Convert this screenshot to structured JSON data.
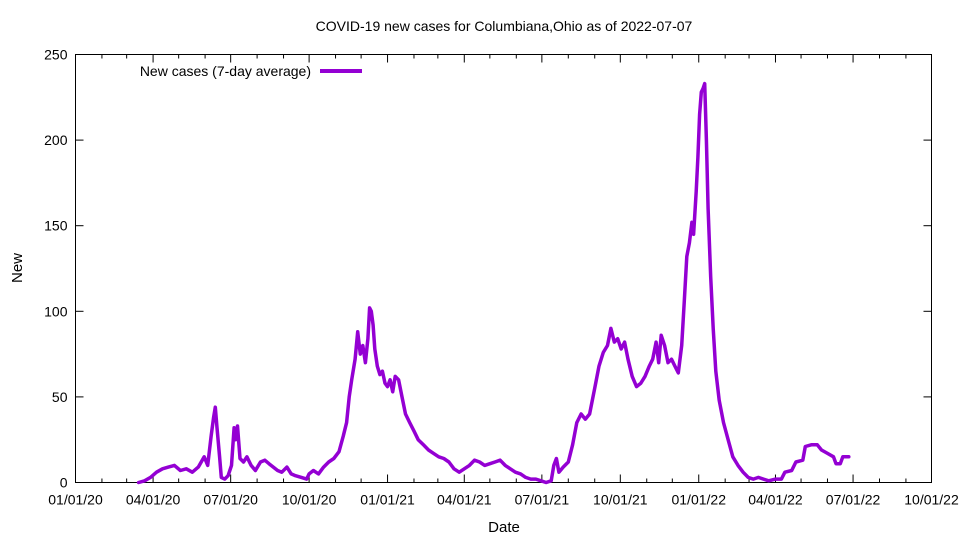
{
  "chart_data": {
    "type": "line",
    "title": "COVID-19 new cases for Columbiana,Ohio as of 2022-07-07",
    "xlabel": "Date",
    "ylabel": "New",
    "xlim": [
      "2020-01-01",
      "2022-10-01"
    ],
    "ylim": [
      0,
      250
    ],
    "xticks": [
      {
        "date": "2020-01-01",
        "label": "01/01/20"
      },
      {
        "date": "2020-04-01",
        "label": "04/01/20"
      },
      {
        "date": "2020-07-01",
        "label": "07/01/20"
      },
      {
        "date": "2020-10-01",
        "label": "10/01/20"
      },
      {
        "date": "2021-01-01",
        "label": "01/01/21"
      },
      {
        "date": "2021-04-01",
        "label": "04/01/21"
      },
      {
        "date": "2021-07-01",
        "label": "07/01/21"
      },
      {
        "date": "2021-10-01",
        "label": "10/01/21"
      },
      {
        "date": "2022-01-01",
        "label": "01/01/22"
      },
      {
        "date": "2022-04-01",
        "label": "04/01/22"
      },
      {
        "date": "2022-07-01",
        "label": "07/01/22"
      },
      {
        "date": "2022-10-01",
        "label": "10/01/22"
      }
    ],
    "yticks": [
      0,
      50,
      100,
      150,
      200,
      250
    ],
    "grid": false,
    "legend_position": "top-left",
    "series": [
      {
        "name": "New cases (7-day average)",
        "color": "#9400d3",
        "points": [
          [
            "2020-03-15",
            0
          ],
          [
            "2020-03-22",
            1
          ],
          [
            "2020-03-29",
            3
          ],
          [
            "2020-04-05",
            6
          ],
          [
            "2020-04-12",
            8
          ],
          [
            "2020-04-19",
            9
          ],
          [
            "2020-04-26",
            10
          ],
          [
            "2020-05-03",
            7
          ],
          [
            "2020-05-10",
            8
          ],
          [
            "2020-05-17",
            6
          ],
          [
            "2020-05-24",
            9
          ],
          [
            "2020-05-31",
            15
          ],
          [
            "2020-06-04",
            10
          ],
          [
            "2020-06-08",
            27
          ],
          [
            "2020-06-11",
            38
          ],
          [
            "2020-06-13",
            44
          ],
          [
            "2020-06-15",
            32
          ],
          [
            "2020-06-18",
            15
          ],
          [
            "2020-06-20",
            3
          ],
          [
            "2020-06-24",
            2
          ],
          [
            "2020-06-28",
            4
          ],
          [
            "2020-07-02",
            10
          ],
          [
            "2020-07-05",
            32
          ],
          [
            "2020-07-07",
            25
          ],
          [
            "2020-07-09",
            33
          ],
          [
            "2020-07-12",
            14
          ],
          [
            "2020-07-16",
            12
          ],
          [
            "2020-07-20",
            15
          ],
          [
            "2020-07-25",
            10
          ],
          [
            "2020-07-30",
            7
          ],
          [
            "2020-08-05",
            12
          ],
          [
            "2020-08-10",
            13
          ],
          [
            "2020-08-15",
            11
          ],
          [
            "2020-08-20",
            9
          ],
          [
            "2020-08-25",
            7
          ],
          [
            "2020-08-30",
            6
          ],
          [
            "2020-09-05",
            9
          ],
          [
            "2020-09-10",
            5
          ],
          [
            "2020-09-15",
            4
          ],
          [
            "2020-09-22",
            3
          ],
          [
            "2020-09-28",
            2
          ],
          [
            "2020-10-01",
            5
          ],
          [
            "2020-10-06",
            7
          ],
          [
            "2020-10-12",
            5
          ],
          [
            "2020-10-18",
            9
          ],
          [
            "2020-10-24",
            12
          ],
          [
            "2020-10-30",
            14
          ],
          [
            "2020-11-05",
            18
          ],
          [
            "2020-11-10",
            27
          ],
          [
            "2020-11-14",
            35
          ],
          [
            "2020-11-17",
            50
          ],
          [
            "2020-11-20",
            60
          ],
          [
            "2020-11-24",
            72
          ],
          [
            "2020-11-27",
            88
          ],
          [
            "2020-11-30",
            75
          ],
          [
            "2020-12-03",
            80
          ],
          [
            "2020-12-06",
            70
          ],
          [
            "2020-12-09",
            84
          ],
          [
            "2020-12-11",
            102
          ],
          [
            "2020-12-13",
            100
          ],
          [
            "2020-12-15",
            92
          ],
          [
            "2020-12-17",
            78
          ],
          [
            "2020-12-20",
            68
          ],
          [
            "2020-12-23",
            63
          ],
          [
            "2020-12-26",
            65
          ],
          [
            "2020-12-29",
            58
          ],
          [
            "2021-01-01",
            56
          ],
          [
            "2021-01-04",
            60
          ],
          [
            "2021-01-07",
            53
          ],
          [
            "2021-01-10",
            62
          ],
          [
            "2021-01-14",
            60
          ],
          [
            "2021-01-18",
            50
          ],
          [
            "2021-01-22",
            40
          ],
          [
            "2021-01-27",
            35
          ],
          [
            "2021-02-01",
            30
          ],
          [
            "2021-02-06",
            25
          ],
          [
            "2021-02-12",
            22
          ],
          [
            "2021-02-18",
            19
          ],
          [
            "2021-02-24",
            17
          ],
          [
            "2021-03-02",
            15
          ],
          [
            "2021-03-08",
            14
          ],
          [
            "2021-03-14",
            12
          ],
          [
            "2021-03-20",
            8
          ],
          [
            "2021-03-26",
            6
          ],
          [
            "2021-04-01",
            8
          ],
          [
            "2021-04-07",
            10
          ],
          [
            "2021-04-13",
            13
          ],
          [
            "2021-04-19",
            12
          ],
          [
            "2021-04-25",
            10
          ],
          [
            "2021-05-01",
            11
          ],
          [
            "2021-05-07",
            12
          ],
          [
            "2021-05-13",
            13
          ],
          [
            "2021-05-19",
            10
          ],
          [
            "2021-05-25",
            8
          ],
          [
            "2021-05-31",
            6
          ],
          [
            "2021-06-06",
            5
          ],
          [
            "2021-06-12",
            3
          ],
          [
            "2021-06-18",
            2
          ],
          [
            "2021-06-24",
            2
          ],
          [
            "2021-06-30",
            1
          ],
          [
            "2021-07-06",
            0
          ],
          [
            "2021-07-12",
            1
          ],
          [
            "2021-07-15",
            10
          ],
          [
            "2021-07-18",
            14
          ],
          [
            "2021-07-21",
            6
          ],
          [
            "2021-07-26",
            9
          ],
          [
            "2021-08-01",
            12
          ],
          [
            "2021-08-06",
            22
          ],
          [
            "2021-08-11",
            35
          ],
          [
            "2021-08-16",
            40
          ],
          [
            "2021-08-21",
            37
          ],
          [
            "2021-08-26",
            40
          ],
          [
            "2021-09-01",
            55
          ],
          [
            "2021-09-06",
            68
          ],
          [
            "2021-09-11",
            76
          ],
          [
            "2021-09-16",
            80
          ],
          [
            "2021-09-20",
            90
          ],
          [
            "2021-09-24",
            82
          ],
          [
            "2021-09-28",
            84
          ],
          [
            "2021-10-02",
            78
          ],
          [
            "2021-10-06",
            82
          ],
          [
            "2021-10-10",
            72
          ],
          [
            "2021-10-15",
            62
          ],
          [
            "2021-10-20",
            56
          ],
          [
            "2021-10-25",
            58
          ],
          [
            "2021-10-30",
            62
          ],
          [
            "2021-11-04",
            68
          ],
          [
            "2021-11-08",
            72
          ],
          [
            "2021-11-12",
            82
          ],
          [
            "2021-11-15",
            70
          ],
          [
            "2021-11-18",
            86
          ],
          [
            "2021-11-22",
            80
          ],
          [
            "2021-11-26",
            70
          ],
          [
            "2021-11-30",
            72
          ],
          [
            "2021-12-04",
            68
          ],
          [
            "2021-12-08",
            64
          ],
          [
            "2021-12-12",
            80
          ],
          [
            "2021-12-15",
            105
          ],
          [
            "2021-12-18",
            132
          ],
          [
            "2021-12-21",
            140
          ],
          [
            "2021-12-24",
            152
          ],
          [
            "2021-12-26",
            145
          ],
          [
            "2021-12-29",
            170
          ],
          [
            "2021-12-31",
            190
          ],
          [
            "2022-01-02",
            215
          ],
          [
            "2022-01-04",
            228
          ],
          [
            "2022-01-06",
            230
          ],
          [
            "2022-01-08",
            233
          ],
          [
            "2022-01-10",
            200
          ],
          [
            "2022-01-12",
            160
          ],
          [
            "2022-01-15",
            120
          ],
          [
            "2022-01-18",
            90
          ],
          [
            "2022-01-21",
            65
          ],
          [
            "2022-01-25",
            48
          ],
          [
            "2022-01-30",
            35
          ],
          [
            "2022-02-05",
            24
          ],
          [
            "2022-02-10",
            15
          ],
          [
            "2022-02-16",
            10
          ],
          [
            "2022-02-22",
            6
          ],
          [
            "2022-02-28",
            3
          ],
          [
            "2022-03-06",
            2
          ],
          [
            "2022-03-12",
            3
          ],
          [
            "2022-03-18",
            2
          ],
          [
            "2022-03-24",
            1
          ],
          [
            "2022-04-01",
            2
          ],
          [
            "2022-04-08",
            2
          ],
          [
            "2022-04-12",
            6
          ],
          [
            "2022-04-20",
            7
          ],
          [
            "2022-04-25",
            12
          ],
          [
            "2022-05-03",
            13
          ],
          [
            "2022-05-06",
            21
          ],
          [
            "2022-05-13",
            22
          ],
          [
            "2022-05-20",
            22
          ],
          [
            "2022-05-25",
            19
          ],
          [
            "2022-06-01",
            17
          ],
          [
            "2022-06-08",
            15
          ],
          [
            "2022-06-11",
            11
          ],
          [
            "2022-06-16",
            11
          ],
          [
            "2022-06-19",
            15
          ],
          [
            "2022-06-26",
            15
          ]
        ]
      }
    ]
  }
}
